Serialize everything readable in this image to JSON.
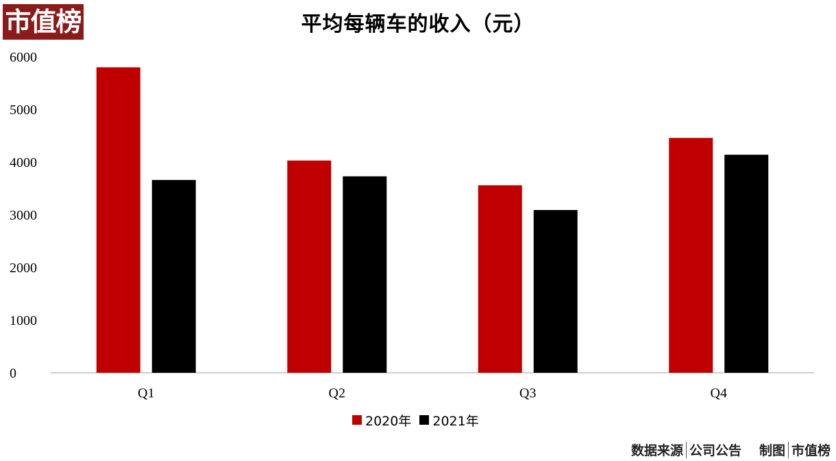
{
  "logo": "市值榜",
  "source": {
    "label": "数据来源",
    "value": "公司公告",
    "maker_label": "制图",
    "maker_value": "市值榜"
  },
  "chart_data": {
    "type": "bar",
    "title": "平均每辆车的收入（元）",
    "xlabel": "",
    "ylabel": "",
    "categories": [
      "Q1",
      "Q2",
      "Q3",
      "Q4"
    ],
    "series": [
      {
        "name": "2020年",
        "color": "#c00000",
        "values": [
          5800,
          4030,
          3560,
          4460
        ]
      },
      {
        "name": "2021年",
        "color": "#000000",
        "values": [
          3660,
          3730,
          3090,
          4140
        ]
      }
    ],
    "ylim": [
      0,
      6000
    ],
    "yticks": [
      "0",
      "1000",
      "2000",
      "3000",
      "4000",
      "5000",
      "6000"
    ],
    "grid": false,
    "legend": "bottom"
  }
}
